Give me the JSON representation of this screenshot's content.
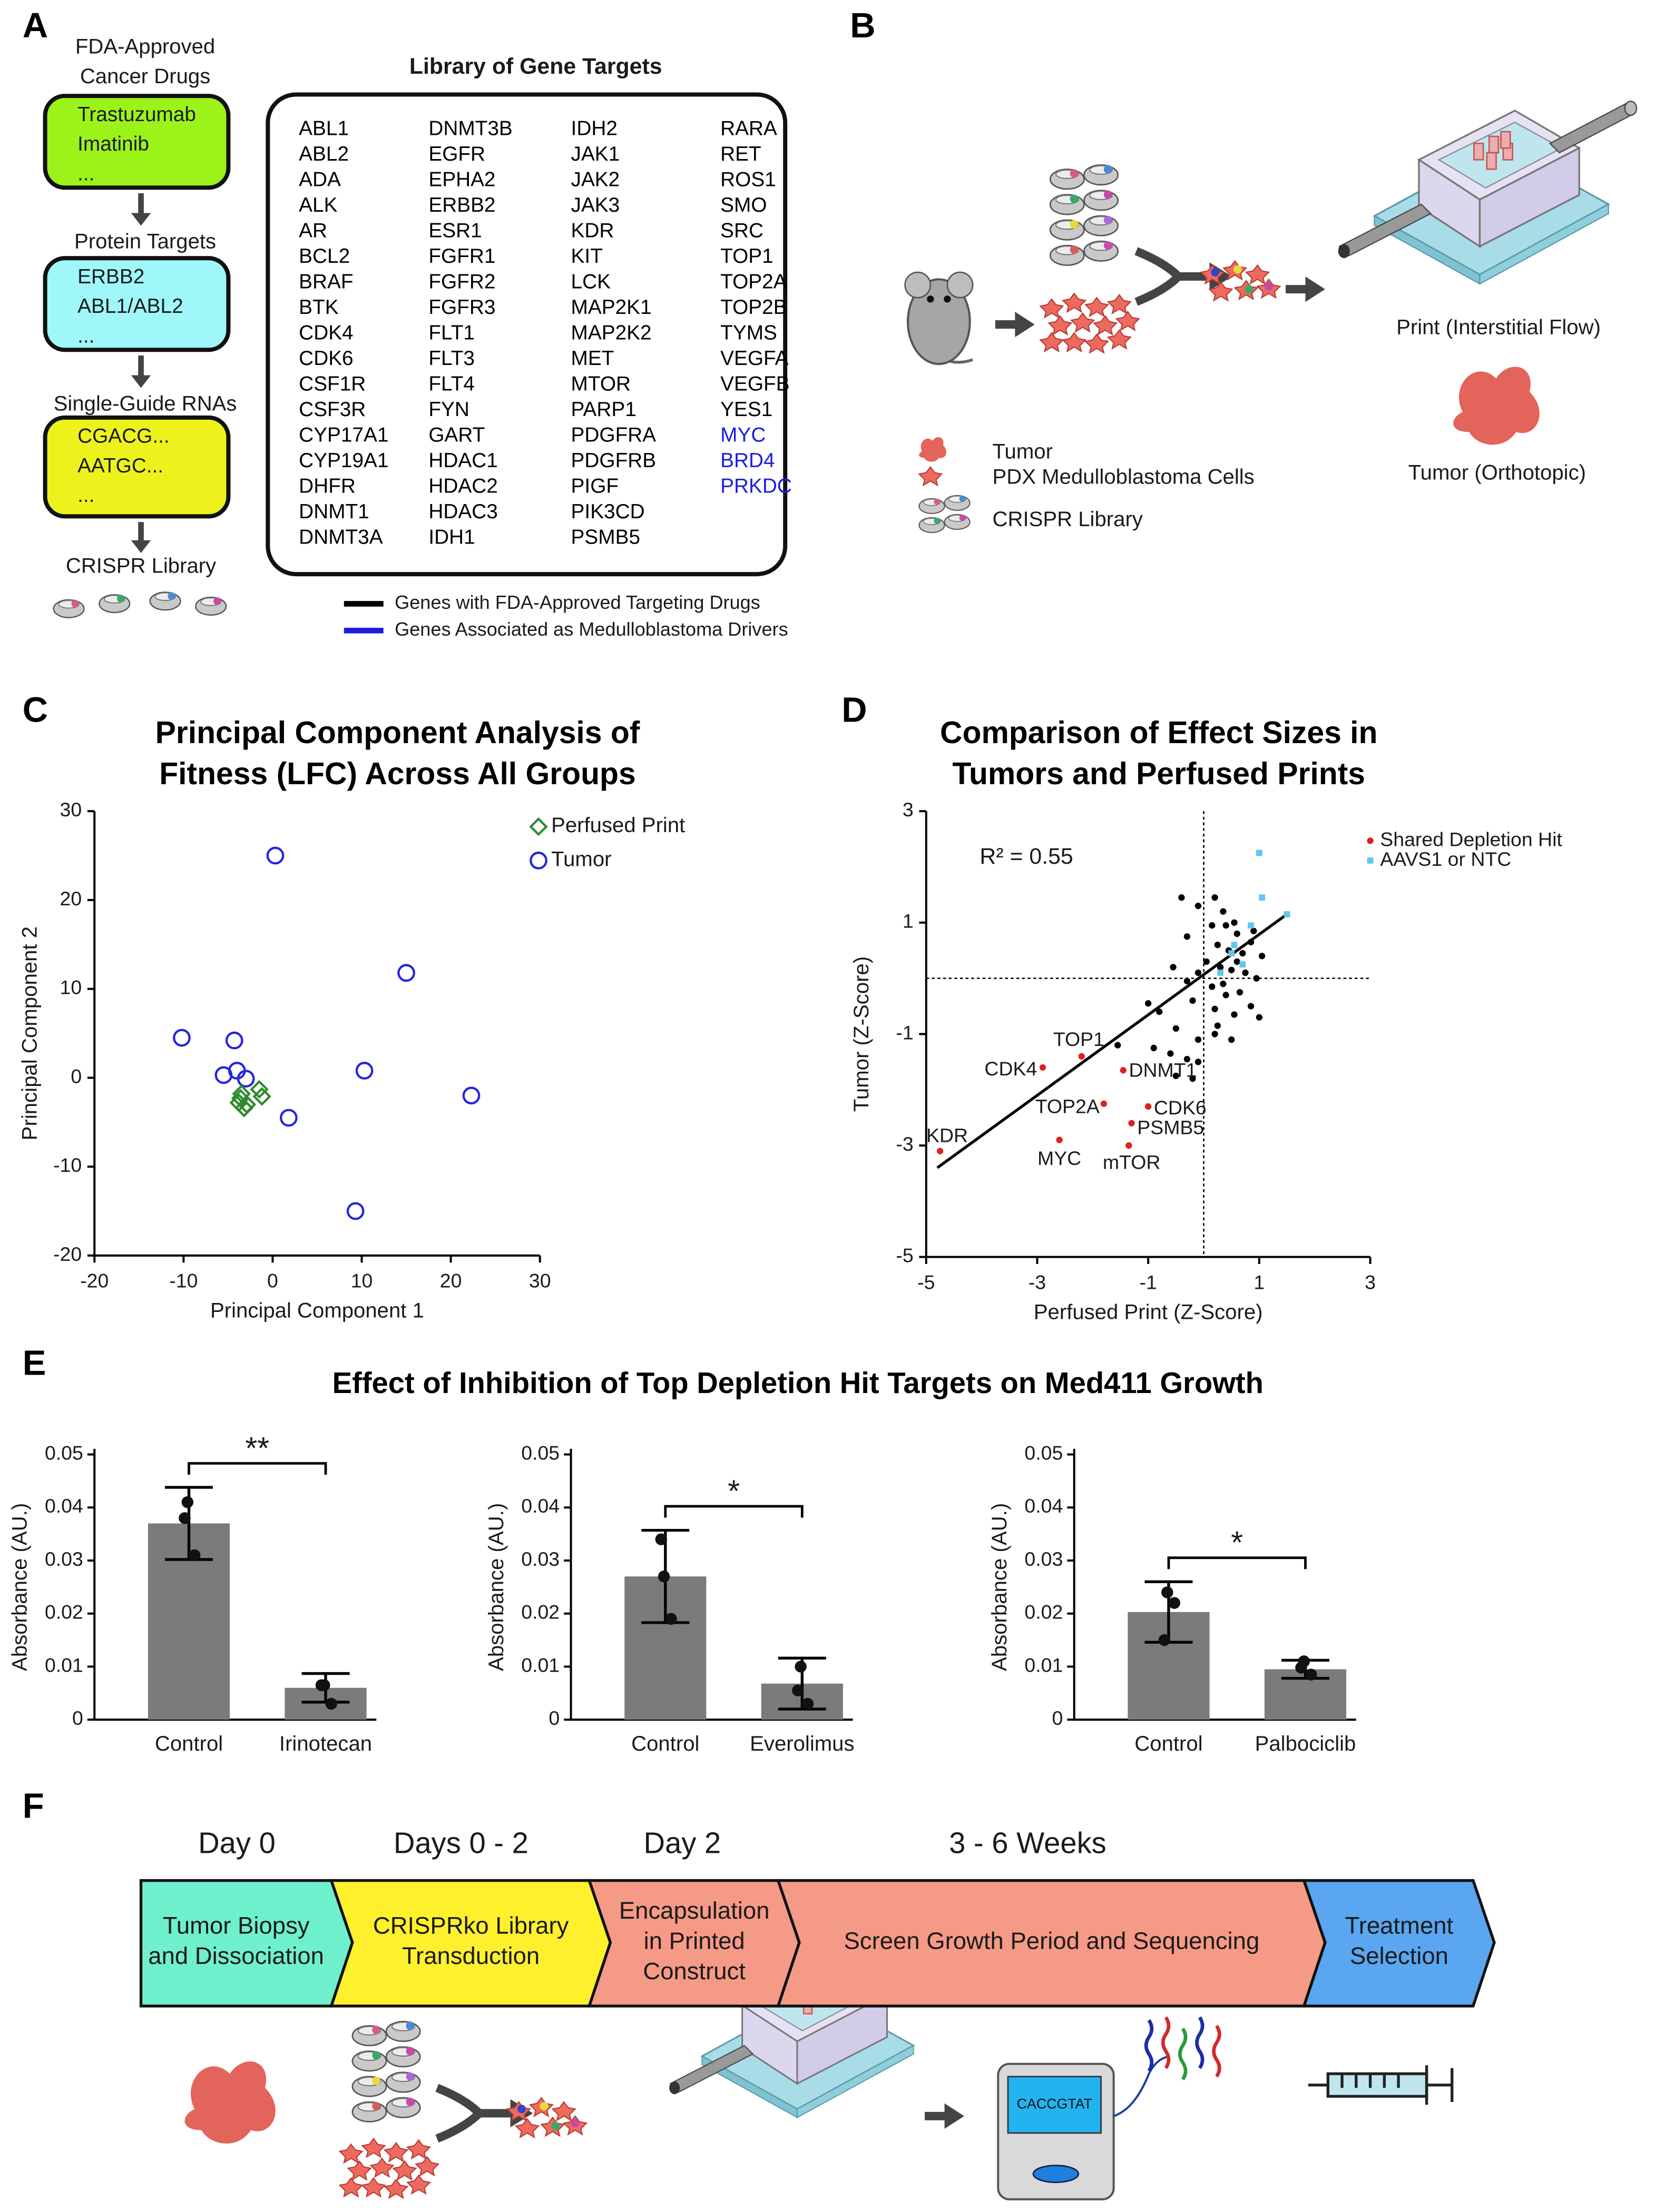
{
  "panel_labels": [
    "A",
    "B",
    "C",
    "D",
    "E",
    "F"
  ],
  "panel_a": {
    "flow": [
      {
        "heading": [
          "FDA-Approved",
          "Cancer Drugs"
        ],
        "items": [
          "Trastuzumab",
          "Imatinib",
          "..."
        ],
        "color": "#9cf31a"
      },
      {
        "heading": [
          "Protein Targets"
        ],
        "items": [
          "ERBB2",
          "ABL1/ABL2",
          "..."
        ],
        "color": "#9ff7fa"
      },
      {
        "heading": [
          "Single-Guide RNAs"
        ],
        "items": [
          "CGACG...",
          "AATGC...",
          "..."
        ],
        "color": "#eef21c"
      }
    ],
    "flow_result": "CRISPR Library",
    "library_title": "Library of Gene Targets",
    "columns": [
      [
        {
          "name": "ABL1",
          "group": 0
        },
        {
          "name": "ABL2",
          "group": 0
        },
        {
          "name": "ADA",
          "group": 0
        },
        {
          "name": "ALK",
          "group": 0
        },
        {
          "name": "AR",
          "group": 0
        },
        {
          "name": "BCL2",
          "group": 0
        },
        {
          "name": "BRAF",
          "group": 0
        },
        {
          "name": "BTK",
          "group": 0
        },
        {
          "name": "CDK4",
          "group": 0
        },
        {
          "name": "CDK6",
          "group": 0
        },
        {
          "name": "CSF1R",
          "group": 0
        },
        {
          "name": "CSF3R",
          "group": 0
        },
        {
          "name": "CYP17A1",
          "group": 0
        },
        {
          "name": "CYP19A1",
          "group": 0
        },
        {
          "name": "DHFR",
          "group": 0
        },
        {
          "name": "DNMT1",
          "group": 0
        },
        {
          "name": "DNMT3A",
          "group": 0
        }
      ],
      [
        {
          "name": "DNMT3B",
          "group": 0
        },
        {
          "name": "EGFR",
          "group": 0
        },
        {
          "name": "EPHA2",
          "group": 0
        },
        {
          "name": "ERBB2",
          "group": 0
        },
        {
          "name": "ESR1",
          "group": 0
        },
        {
          "name": "FGFR1",
          "group": 0
        },
        {
          "name": "FGFR2",
          "group": 0
        },
        {
          "name": "FGFR3",
          "group": 0
        },
        {
          "name": "FLT1",
          "group": 0
        },
        {
          "name": "FLT3",
          "group": 0
        },
        {
          "name": "FLT4",
          "group": 0
        },
        {
          "name": "FYN",
          "group": 0
        },
        {
          "name": "GART",
          "group": 0
        },
        {
          "name": "HDAC1",
          "group": 0
        },
        {
          "name": "HDAC2",
          "group": 0
        },
        {
          "name": "HDAC3",
          "group": 0
        },
        {
          "name": "IDH1",
          "group": 0
        }
      ],
      [
        {
          "name": "IDH2",
          "group": 0
        },
        {
          "name": "JAK1",
          "group": 0
        },
        {
          "name": "JAK2",
          "group": 0
        },
        {
          "name": "JAK3",
          "group": 0
        },
        {
          "name": "KDR",
          "group": 0
        },
        {
          "name": "KIT",
          "group": 0
        },
        {
          "name": "LCK",
          "group": 0
        },
        {
          "name": "MAP2K1",
          "group": 0
        },
        {
          "name": "MAP2K2",
          "group": 0
        },
        {
          "name": "MET",
          "group": 0
        },
        {
          "name": "MTOR",
          "group": 0
        },
        {
          "name": "PARP1",
          "group": 0
        },
        {
          "name": "PDGFRA",
          "group": 0
        },
        {
          "name": "PDGFRB",
          "group": 0
        },
        {
          "name": "PIGF",
          "group": 0
        },
        {
          "name": "PIK3CD",
          "group": 0
        },
        {
          "name": "PSMB5",
          "group": 0
        }
      ],
      [
        {
          "name": "RARA",
          "group": 0
        },
        {
          "name": "RET",
          "group": 0
        },
        {
          "name": "ROS1",
          "group": 0
        },
        {
          "name": "SMO",
          "group": 0
        },
        {
          "name": "SRC",
          "group": 0
        },
        {
          "name": "TOP1",
          "group": 0
        },
        {
          "name": "TOP2A",
          "group": 0
        },
        {
          "name": "TOP2B",
          "group": 0
        },
        {
          "name": "TYMS",
          "group": 0
        },
        {
          "name": "VEGFA",
          "group": 0
        },
        {
          "name": "VEGFB",
          "group": 0
        },
        {
          "name": "YES1",
          "group": 0
        },
        {
          "name": "MYC",
          "group": 1
        },
        {
          "name": "BRD4",
          "group": 1
        },
        {
          "name": "PRKDC",
          "group": 1
        }
      ]
    ],
    "legend": [
      {
        "label": "Genes with FDA-Approved Targeting Drugs",
        "color": "#000000"
      },
      {
        "label": "Genes Associated as Medulloblastoma Drivers",
        "color": "#1c1ce0"
      }
    ]
  },
  "panel_b": {
    "print_label": "Print (Interstitial Flow)",
    "tumor_label": "Tumor (Orthotopic)",
    "legend": [
      "Tumor",
      "PDX Medulloblastoma Cells",
      "CRISPR Library"
    ]
  },
  "chart_data": [
    {
      "type": "scatter",
      "title": [
        "Principal Component Analysis of",
        "Fitness (LFC) Across All Groups"
      ],
      "xlabel": "Principal Component 1",
      "ylabel": "Principal Component 2",
      "xlim": [
        -20,
        30
      ],
      "xticks": [
        -20,
        -10,
        0,
        10,
        20,
        30
      ],
      "ylim": [
        -20,
        30
      ],
      "yticks": [
        -20,
        -10,
        0,
        10,
        20,
        30
      ],
      "series": [
        {
          "name": "Perfused Print",
          "color": "#2e8b2e",
          "marker": "diamond",
          "x": [
            -1.5,
            -1.2,
            -3.5,
            -3.8,
            -3.2,
            -2.9,
            -3.6
          ],
          "y": [
            -1.3,
            -2.1,
            -1.8,
            -2.8,
            -3.4,
            -3.0,
            -2.3
          ]
        },
        {
          "name": "Tumor",
          "color": "#2424e0",
          "marker": "circle",
          "x": [
            0.3,
            15,
            -10.2,
            -4.3,
            -4,
            -5.5,
            -3,
            10.3,
            22.3,
            1.8,
            9.3
          ],
          "y": [
            25,
            11.8,
            4.5,
            4.2,
            0.8,
            0.3,
            -0.1,
            0.8,
            -2,
            -4.5,
            -15
          ]
        }
      ]
    },
    {
      "type": "scatter",
      "title": [
        "Comparison of Effect Sizes in",
        "Tumors and Perfused Prints"
      ],
      "xlabel": "Perfused Print (Z-Score)",
      "ylabel": "Tumor (Z-Score)",
      "xlim": [
        -5,
        3
      ],
      "xticks": [
        -5,
        -3,
        -1,
        1,
        3
      ],
      "ylim": [
        -5,
        3
      ],
      "yticks": [
        -5,
        -3,
        -1,
        1,
        3
      ],
      "annotation": "R² = 0.55",
      "reference_lines": {
        "x": 0,
        "y": 0
      },
      "fit_line": {
        "x": [
          -4.8,
          1.5
        ],
        "y": [
          -3.4,
          1.15
        ]
      },
      "series": [
        {
          "name": "Shared Depletion Hit",
          "color": "#e0201e",
          "marker": "dot",
          "x": [
            -4.75,
            -2.6,
            -2.9,
            -2.2,
            -1.8,
            -1.45,
            -1.0,
            -1.3,
            -1.35
          ],
          "y": [
            -3.1,
            -2.9,
            -1.6,
            -1.4,
            -2.25,
            -1.65,
            -2.3,
            -2.6,
            -3.0
          ],
          "labels": [
            "KDR",
            "MYC",
            "CDK4",
            "TOP1",
            "TOP2A",
            "DNMT1",
            "CDK6",
            "PSMB5",
            "mTOR"
          ]
        },
        {
          "name": "AAVS1 or NTC",
          "color": "#5ec8ec",
          "marker": "square",
          "x": [
            1.0,
            1.05,
            1.5,
            0.85,
            0.5,
            0.7,
            0.3,
            0.55
          ],
          "y": [
            2.25,
            1.45,
            1.15,
            0.95,
            0.45,
            0.25,
            0.1,
            0.6
          ]
        },
        {
          "color": "#000000",
          "marker": "dot",
          "x": [
            -0.4,
            -0.1,
            0.2,
            0.35,
            0.55,
            0.4,
            0.15,
            -0.3,
            0.6,
            0.9,
            0.25,
            0.45,
            0.7,
            1.05,
            0.85,
            -0.55,
            -0.1,
            0.05,
            0.3,
            0.5,
            0.75,
            0.95,
            -0.3,
            0.15,
            0.4,
            0.65,
            0.85,
            1.0,
            0.55,
            0.2,
            -0.2,
            -0.8,
            -1.0,
            -1.55,
            -0.5,
            -0.1,
            0.2,
            0.5,
            -0.6,
            -0.3,
            -0.1,
            -0.5,
            -0.2,
            -0.9,
            0.25,
            0.6,
            0.35
          ],
          "y": [
            1.45,
            1.3,
            1.45,
            1.2,
            1.0,
            0.95,
            0.95,
            0.75,
            0.8,
            0.85,
            0.6,
            0.5,
            0.45,
            0.4,
            0.65,
            0.2,
            0.1,
            0.3,
            0.2,
            0.15,
            0.1,
            0.0,
            -0.05,
            -0.15,
            -0.3,
            -0.25,
            -0.5,
            -0.7,
            -0.65,
            -0.55,
            -0.4,
            -0.6,
            -0.45,
            -1.2,
            -0.9,
            -1.1,
            -1.0,
            -1.1,
            -1.35,
            -1.45,
            -1.5,
            -1.75,
            -1.8,
            -1.25,
            -0.85,
            0.3,
            -0.1
          ]
        }
      ]
    },
    {
      "type": "bar",
      "categories": [
        "Control",
        "Irinotecan"
      ],
      "values": [
        0.037,
        0.006
      ],
      "errors": [
        0.0068,
        0.0027
      ],
      "points": [
        [
          0.041,
          0.031,
          0.038
        ],
        [
          0.0065,
          0.003,
          0.0065
        ]
      ],
      "significance": "**",
      "ylabel": "Absorbance (AU.)",
      "ylim": [
        0,
        0.05
      ],
      "yticks": [
        0,
        0.01,
        0.02,
        0.03,
        0.04,
        0.05
      ],
      "color": "#7b7b7b"
    },
    {
      "type": "bar",
      "categories": [
        "Control",
        "Everolimus"
      ],
      "values": [
        0.027,
        0.0068
      ],
      "errors": [
        0.0087,
        0.0048
      ],
      "points": [
        [
          0.027,
          0.019,
          0.034
        ],
        [
          0.01,
          0.003,
          0.0055
        ]
      ],
      "significance": "*",
      "ylabel": "Absorbance (AU.)",
      "ylim": [
        0,
        0.05
      ],
      "yticks": [
        0,
        0.01,
        0.02,
        0.03,
        0.04,
        0.05
      ],
      "color": "#7b7b7b"
    },
    {
      "type": "bar",
      "categories": [
        "Control",
        "Palbociclib"
      ],
      "values": [
        0.0203,
        0.0095
      ],
      "errors": [
        0.0057,
        0.0017
      ],
      "points": [
        [
          0.024,
          0.022,
          0.015
        ],
        [
          0.011,
          0.0085,
          0.0098
        ]
      ],
      "significance": "*",
      "ylabel": "Absorbance (AU.)",
      "ylim": [
        0,
        0.05
      ],
      "yticks": [
        0,
        0.01,
        0.02,
        0.03,
        0.04,
        0.05
      ],
      "color": "#7b7b7b"
    }
  ],
  "panel_e_title": "Effect of Inhibition of Top Depletion Hit Targets on Med411 Growth",
  "panel_f": {
    "timepoints": [
      "Day 0",
      "Days 0 - 2",
      "Day 2",
      "3 - 6 Weeks"
    ],
    "steps": [
      {
        "lines": [
          "Tumor Biopsy",
          "and Dissociation"
        ],
        "color": "#6ff0cc"
      },
      {
        "lines": [
          "CRISPRko Library",
          "Transduction"
        ],
        "color": "#fff02e"
      },
      {
        "lines": [
          "Encapsulation",
          "in Printed",
          "Construct"
        ],
        "color": "#f59a86"
      },
      {
        "lines": [
          "Screen Growth Period and Sequencing"
        ],
        "color": "#f59a86"
      },
      {
        "lines": [
          "Treatment",
          "Selection"
        ],
        "color": "#5aa6f0"
      }
    ],
    "sequence": "CACCGTAT"
  }
}
